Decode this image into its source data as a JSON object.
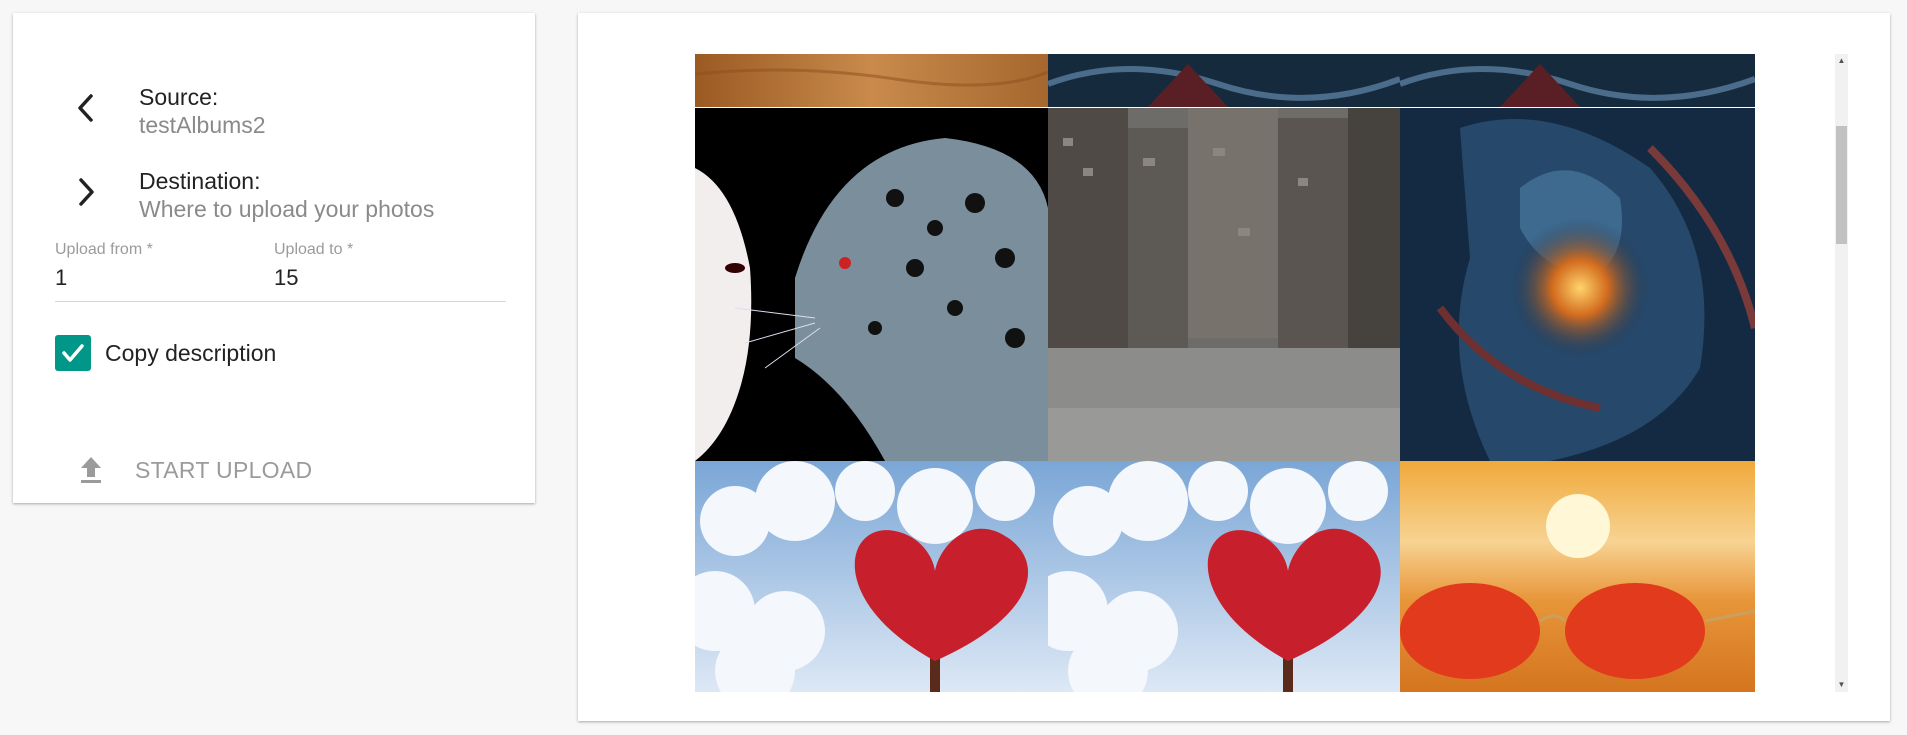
{
  "source": {
    "title": "Source:",
    "value": "testAlbums2",
    "icon": "chevron-left-icon"
  },
  "destination": {
    "title": "Destination:",
    "value": "Where to upload your photos",
    "icon": "chevron-right-icon"
  },
  "upload_from": {
    "label": "Upload from *",
    "value": "1"
  },
  "upload_to": {
    "label": "Upload to *",
    "value": "15"
  },
  "copy_description": {
    "label": "Copy description",
    "checked": true,
    "color": "#009688"
  },
  "start_upload": {
    "label": "START UPLOAD",
    "icon": "upload-icon",
    "enabled": false
  },
  "photos": [
    {
      "name": "wood-texture",
      "row": 0,
      "col": 0
    },
    {
      "name": "dark-fantasy-partial",
      "row": 0,
      "col": 1
    },
    {
      "name": "dark-fantasy-partial",
      "row": 0,
      "col": 2
    },
    {
      "name": "woman-and-leopard",
      "row": 1,
      "col": 0
    },
    {
      "name": "futuristic-city",
      "row": 1,
      "col": 1
    },
    {
      "name": "fantasy-warrior",
      "row": 1,
      "col": 2
    },
    {
      "name": "heart-tree-clouds",
      "row": 2,
      "col": 0
    },
    {
      "name": "heart-tree-clouds",
      "row": 2,
      "col": 1
    },
    {
      "name": "sunglasses-sunset",
      "row": 2,
      "col": 2
    }
  ]
}
